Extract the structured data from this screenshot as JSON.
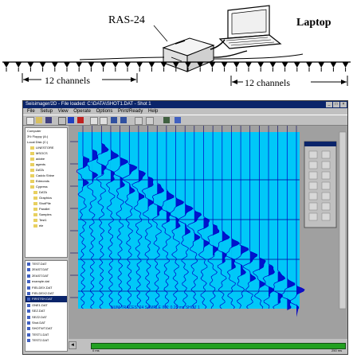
{
  "diagram": {
    "device_label": "RAS-24",
    "laptop_label": "Laptop",
    "left_span": "12 channels",
    "right_span": "12 channels"
  },
  "app": {
    "title": "Seisimager/2D - File loaded: C:\\DATA\\SHOT1.DAT - Shot 1",
    "menu": [
      "File",
      "Setup",
      "View",
      "Operate",
      "Options",
      "Print/Ready",
      "Help"
    ],
    "tree": [
      "Computer",
      "3½ Floppy (A:)",
      "Local Disk (C:)",
      "LINESTORE",
      "MSOCS",
      "adobe",
      "agents",
      "DATA",
      "Caddo Shine",
      "Edmonds",
      "Cypress",
      "DATA",
      "Graphics",
      "ShotPile",
      "Parallel",
      "Samples",
      "Test1",
      "ele"
    ],
    "files": [
      "TEST.DAT",
      "2EAST.DAT",
      "2EAST.DAT",
      "example.dat",
      "FIELDEX.DAT",
      "FIELDEX2.DAT",
      "FIRSTSH.DAT",
      "ONE1.DAT",
      "SEZ.DAT",
      "SEZ2.DAT",
      "Shot.DAT",
      "SHOTWT.DAT",
      "TEST1.DAT",
      "TEST2.DAT"
    ],
    "selected_file_index": 6,
    "status_line": "NUM TRACES: 24   SAMPLE INT: 0.25 ms   SHOT 1",
    "bottom_left": "0 ms",
    "bottom_right": "250 ms",
    "accent_color": "#00c8f8",
    "trace_color": "#0000c8"
  }
}
